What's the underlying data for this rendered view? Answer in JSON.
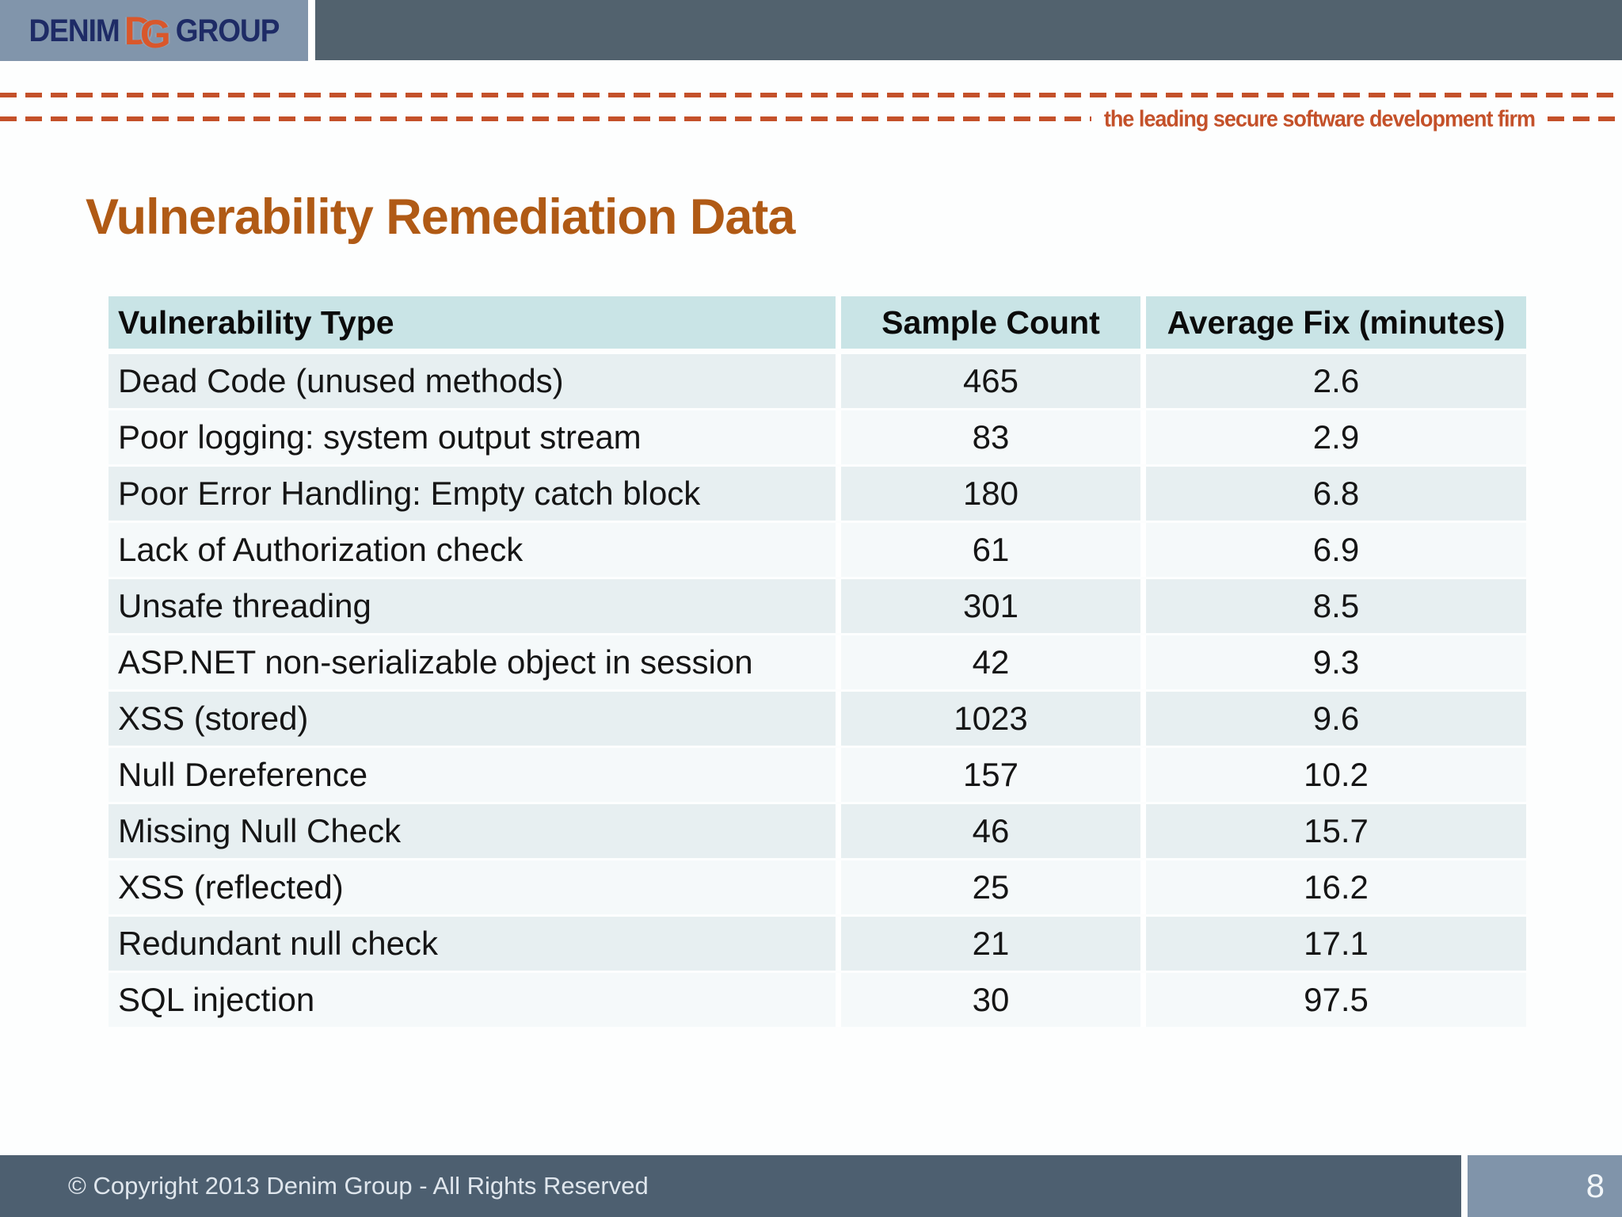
{
  "title": "Vulnerability Remediation Data",
  "header": {
    "logo": {
      "left": "DENIM",
      "monogram_d": "D",
      "monogram_g": "G",
      "right": "GROUP"
    },
    "tagline": "the leading secure software development firm"
  },
  "table": {
    "columns": [
      "Vulnerability Type",
      "Sample Count",
      "Average Fix (minutes)"
    ],
    "rows": [
      {
        "type": "Dead Code (unused methods)",
        "count": "465",
        "fix": "2.6"
      },
      {
        "type": "Poor logging: system output stream",
        "count": "83",
        "fix": "2.9"
      },
      {
        "type": "Poor Error Handling: Empty catch block",
        "count": "180",
        "fix": "6.8"
      },
      {
        "type": "Lack of Authorization check",
        "count": "61",
        "fix": "6.9"
      },
      {
        "type": "Unsafe threading",
        "count": "301",
        "fix": "8.5"
      },
      {
        "type": "ASP.NET non-serializable object in session",
        "count": "42",
        "fix": "9.3"
      },
      {
        "type": "XSS (stored)",
        "count": "1023",
        "fix": "9.6"
      },
      {
        "type": "Null Dereference",
        "count": "157",
        "fix": "10.2"
      },
      {
        "type": "Missing Null Check",
        "count": "46",
        "fix": "15.7"
      },
      {
        "type": "XSS (reflected)",
        "count": "25",
        "fix": "16.2"
      },
      {
        "type": "Redundant null check",
        "count": "21",
        "fix": "17.1"
      },
      {
        "type": "SQL injection",
        "count": "30",
        "fix": "97.5"
      }
    ]
  },
  "footer": {
    "copyright": "© Copyright 2013  Denim Group - All Rights Reserved",
    "page_number": "8"
  },
  "colors": {
    "accent_rust": "#c4512a",
    "title_brown": "#b05a15",
    "band_slate": "#52626e",
    "logo_slate": "#8195ab",
    "logo_navy": "#1e2b66",
    "logo_orange": "#d9572b",
    "teal_header": "#c9e4e6",
    "stripe_dark": "#e7eff1",
    "stripe_light": "#f5f9fa",
    "footer_slate": "#4d5f70",
    "footer_box": "#8094aa"
  }
}
